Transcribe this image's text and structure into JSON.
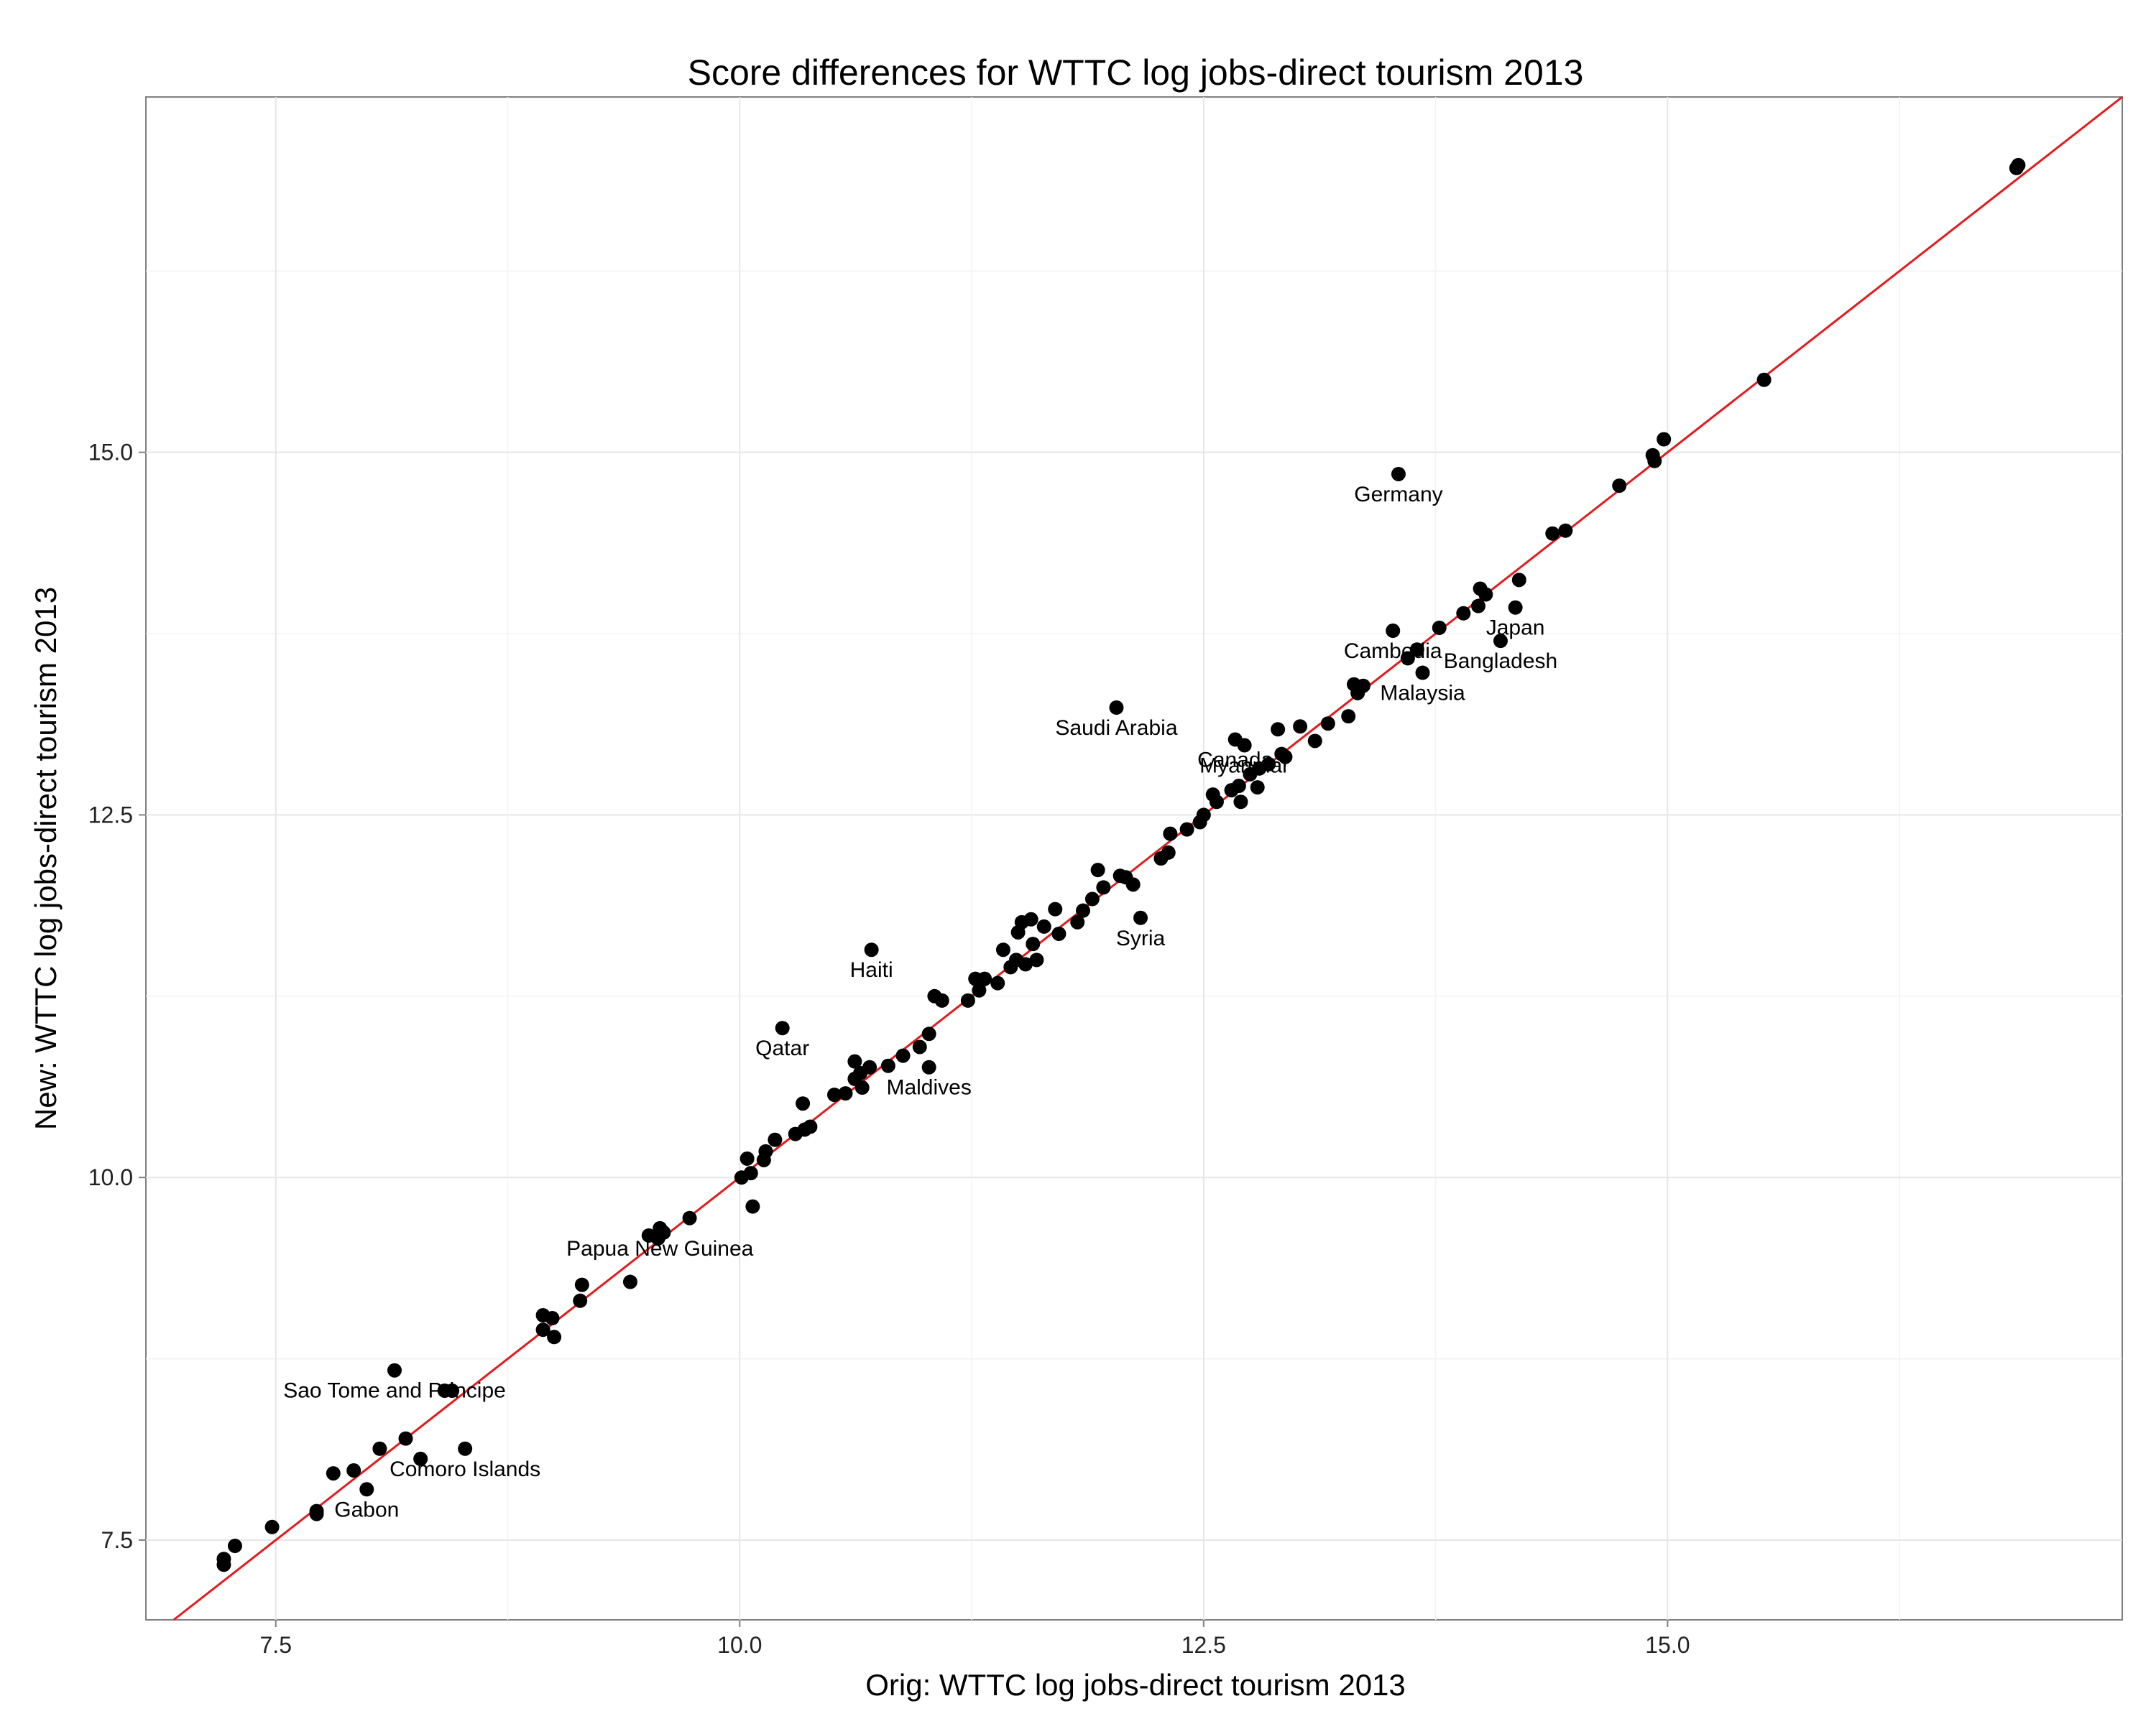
{
  "chart_data": {
    "type": "scatter",
    "title": "Score differences for WTTC log jobs-direct tourism 2013",
    "xlabel": "Orig: WTTC log jobs-direct tourism 2013",
    "ylabel": "New: WTTC log jobs-direct tourism 2013",
    "xlim": [
      6.8,
      17.45
    ],
    "ylim": [
      6.95,
      17.45
    ],
    "xticks": [
      "7.5",
      "10.0",
      "12.5",
      "15.0"
    ],
    "yticks": [
      "7.5",
      "10.0",
      "12.5",
      "15.0"
    ],
    "xtick_values": [
      7.5,
      10.0,
      12.5,
      15.0
    ],
    "ytick_values": [
      7.5,
      10.0,
      12.5,
      15.0
    ],
    "grid": true,
    "reference_line": {
      "type": "identity",
      "color": "#e41a1c"
    },
    "point_color": "#000000",
    "points": [
      [
        7.22,
        7.33
      ],
      [
        7.22,
        7.37
      ],
      [
        7.28,
        7.46
      ],
      [
        7.48,
        7.59
      ],
      [
        7.72,
        7.68
      ],
      [
        7.72,
        7.7
      ],
      [
        7.81,
        7.96
      ],
      [
        7.92,
        7.98
      ],
      [
        7.99,
        7.85
      ],
      [
        8.06,
        8.13
      ],
      [
        8.14,
        8.67
      ],
      [
        8.2,
        8.2
      ],
      [
        8.28,
        8.06
      ],
      [
        8.41,
        8.53
      ],
      [
        8.45,
        8.53
      ],
      [
        8.52,
        8.13
      ],
      [
        8.94,
        8.95
      ],
      [
        8.94,
        9.05
      ],
      [
        8.99,
        9.03
      ],
      [
        9.0,
        8.9
      ],
      [
        9.14,
        9.15
      ],
      [
        9.15,
        9.26
      ],
      [
        9.41,
        9.28
      ],
      [
        9.51,
        9.6
      ],
      [
        9.56,
        9.58
      ],
      [
        9.57,
        9.65
      ],
      [
        9.59,
        9.62
      ],
      [
        9.73,
        9.72
      ],
      [
        10.01,
        10.0
      ],
      [
        10.04,
        10.13
      ],
      [
        10.06,
        10.03
      ],
      [
        10.07,
        9.8
      ],
      [
        10.13,
        10.12
      ],
      [
        10.14,
        10.18
      ],
      [
        10.19,
        10.26
      ],
      [
        10.23,
        11.03
      ],
      [
        10.3,
        10.3
      ],
      [
        10.34,
        10.51
      ],
      [
        10.35,
        10.33
      ],
      [
        10.38,
        10.35
      ],
      [
        10.51,
        10.57
      ],
      [
        10.57,
        10.58
      ],
      [
        10.62,
        10.68
      ],
      [
        10.62,
        10.8
      ],
      [
        10.65,
        10.72
      ],
      [
        10.66,
        10.62
      ],
      [
        10.7,
        10.76
      ],
      [
        10.71,
        11.57
      ],
      [
        10.8,
        10.77
      ],
      [
        10.88,
        10.84
      ],
      [
        10.97,
        10.9
      ],
      [
        11.02,
        10.99
      ],
      [
        11.02,
        10.76
      ],
      [
        11.05,
        11.25
      ],
      [
        11.09,
        11.22
      ],
      [
        11.23,
        11.22
      ],
      [
        11.27,
        11.37
      ],
      [
        11.29,
        11.29
      ],
      [
        11.32,
        11.37
      ],
      [
        11.39,
        11.34
      ],
      [
        11.42,
        11.57
      ],
      [
        11.46,
        11.45
      ],
      [
        11.49,
        11.5
      ],
      [
        11.5,
        11.69
      ],
      [
        11.52,
        11.76
      ],
      [
        11.54,
        11.47
      ],
      [
        11.57,
        11.78
      ],
      [
        11.58,
        11.61
      ],
      [
        11.6,
        11.5
      ],
      [
        11.64,
        11.73
      ],
      [
        11.7,
        11.85
      ],
      [
        11.72,
        11.68
      ],
      [
        11.82,
        11.76
      ],
      [
        11.85,
        11.84
      ],
      [
        11.9,
        11.92
      ],
      [
        11.93,
        12.12
      ],
      [
        11.96,
        12.0
      ],
      [
        12.03,
        13.24
      ],
      [
        12.05,
        12.08
      ],
      [
        12.08,
        12.07
      ],
      [
        12.12,
        12.02
      ],
      [
        12.16,
        11.79
      ],
      [
        12.27,
        12.2
      ],
      [
        12.31,
        12.24
      ],
      [
        12.32,
        12.37
      ],
      [
        12.41,
        12.4
      ],
      [
        12.48,
        12.45
      ],
      [
        12.5,
        12.5
      ],
      [
        12.55,
        12.64
      ],
      [
        12.57,
        12.59
      ],
      [
        12.65,
        12.67
      ],
      [
        12.67,
        13.02
      ],
      [
        12.69,
        12.7
      ],
      [
        12.7,
        12.59
      ],
      [
        12.72,
        12.98
      ],
      [
        12.75,
        12.78
      ],
      [
        12.79,
        12.69
      ],
      [
        12.8,
        12.82
      ],
      [
        12.85,
        12.85
      ],
      [
        12.9,
        13.09
      ],
      [
        12.92,
        12.92
      ],
      [
        12.94,
        12.9
      ],
      [
        13.02,
        13.11
      ],
      [
        13.1,
        13.01
      ],
      [
        13.17,
        13.13
      ],
      [
        13.28,
        13.18
      ],
      [
        13.31,
        13.4
      ],
      [
        13.33,
        13.34
      ],
      [
        13.36,
        13.39
      ],
      [
        13.52,
        13.77
      ],
      [
        13.55,
        14.85
      ],
      [
        13.6,
        13.58
      ],
      [
        13.65,
        13.64
      ],
      [
        13.68,
        13.48
      ],
      [
        13.77,
        13.79
      ],
      [
        13.9,
        13.89
      ],
      [
        13.98,
        13.94
      ],
      [
        13.99,
        14.06
      ],
      [
        14.02,
        14.02
      ],
      [
        14.1,
        13.7
      ],
      [
        14.18,
        13.93
      ],
      [
        14.2,
        14.12
      ],
      [
        14.38,
        14.44
      ],
      [
        14.45,
        14.46
      ],
      [
        14.74,
        14.77
      ],
      [
        14.92,
        14.98
      ],
      [
        14.93,
        14.94
      ],
      [
        14.98,
        15.09
      ],
      [
        15.52,
        15.5
      ],
      [
        16.88,
        16.96
      ],
      [
        16.89,
        16.98
      ]
    ],
    "labels": [
      {
        "text": "Germany",
        "x": 13.55,
        "y": 14.85
      },
      {
        "text": "Japan",
        "x": 14.18,
        "y": 13.93
      },
      {
        "text": "Cambodia",
        "x": 13.52,
        "y": 13.77
      },
      {
        "text": "Bangladesh",
        "x": 14.1,
        "y": 13.7
      },
      {
        "text": "Malaysia",
        "x": 13.68,
        "y": 13.48
      },
      {
        "text": "Saudi Arabia",
        "x": 12.03,
        "y": 13.24
      },
      {
        "text": "Canada",
        "x": 12.67,
        "y": 13.02
      },
      {
        "text": "Myanmar",
        "x": 12.72,
        "y": 12.98
      },
      {
        "text": "Syria",
        "x": 12.16,
        "y": 11.79
      },
      {
        "text": "Haiti",
        "x": 10.71,
        "y": 11.57
      },
      {
        "text": "Qatar",
        "x": 10.23,
        "y": 11.03
      },
      {
        "text": "Maldives",
        "x": 11.02,
        "y": 10.76
      },
      {
        "text": "Papua New Guinea",
        "x": 9.57,
        "y": 9.65
      },
      {
        "text": "Sao Tome and Principe",
        "x": 8.14,
        "y": 8.67
      },
      {
        "text": "Comoro Islands",
        "x": 8.52,
        "y": 8.13
      },
      {
        "text": "Gabon",
        "x": 7.99,
        "y": 7.85
      }
    ]
  }
}
